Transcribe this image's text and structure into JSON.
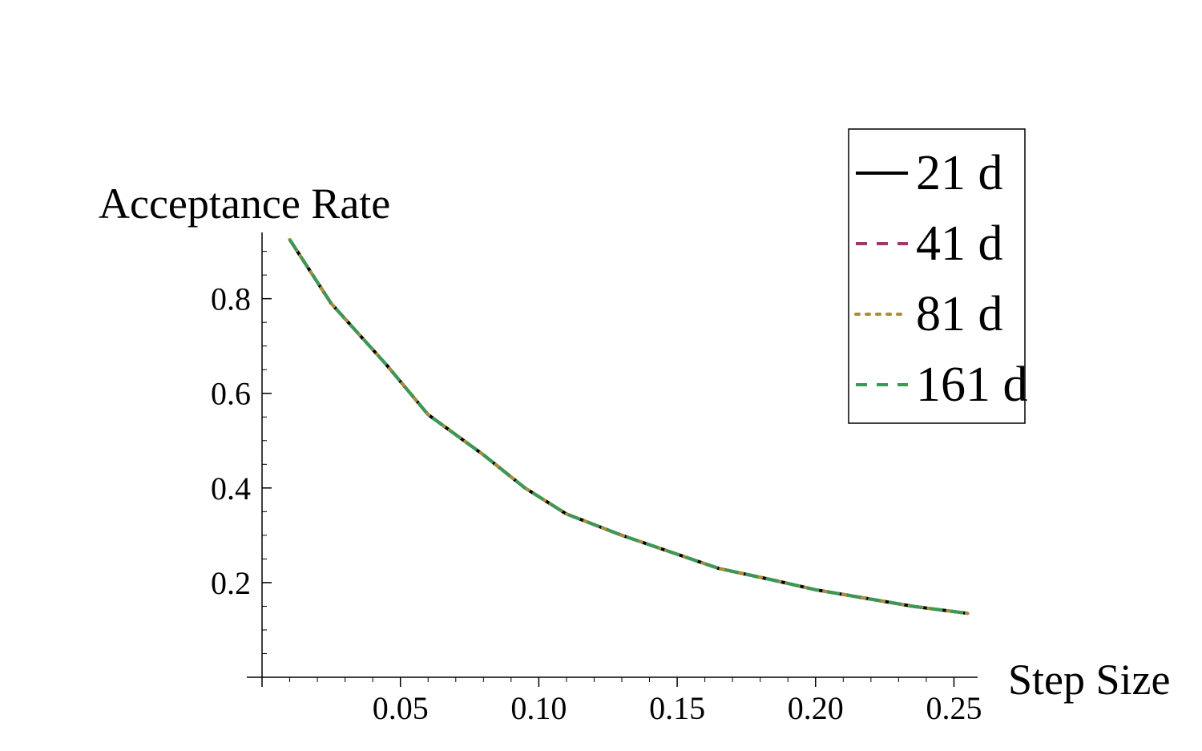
{
  "chart_data": {
    "type": "line",
    "xlabel": "Step Size",
    "ylabel": "Acceptance Rate",
    "xlim": [
      0.0,
      0.26
    ],
    "ylim": [
      0.0,
      0.94
    ],
    "xticks": [
      {
        "value": 0.05,
        "label": "0.05"
      },
      {
        "value": 0.1,
        "label": "0.10"
      },
      {
        "value": 0.15,
        "label": "0.15"
      },
      {
        "value": 0.2,
        "label": "0.20"
      },
      {
        "value": 0.25,
        "label": "0.25"
      }
    ],
    "yticks": [
      {
        "value": 0.2,
        "label": "0.2"
      },
      {
        "value": 0.4,
        "label": "0.4"
      },
      {
        "value": 0.6,
        "label": "0.6"
      },
      {
        "value": 0.8,
        "label": "0.8"
      }
    ],
    "legend_position": "top-right",
    "series": [
      {
        "name": "21 d",
        "color": "#000000",
        "dash": "solid",
        "x": [
          0.01,
          0.025,
          0.045,
          0.06,
          0.08,
          0.095,
          0.11,
          0.13,
          0.15,
          0.165,
          0.185,
          0.2,
          0.215,
          0.235,
          0.255
        ],
        "y": [
          0.925,
          0.79,
          0.66,
          0.555,
          0.47,
          0.4,
          0.345,
          0.3,
          0.26,
          0.23,
          0.205,
          0.185,
          0.17,
          0.15,
          0.135
        ]
      },
      {
        "name": "41 d",
        "color": "#9e3a6b",
        "dash": "dashed",
        "x": [
          0.01,
          0.025,
          0.045,
          0.06,
          0.08,
          0.095,
          0.11,
          0.13,
          0.15,
          0.165,
          0.185,
          0.2,
          0.215,
          0.235,
          0.255
        ],
        "y": [
          0.925,
          0.79,
          0.66,
          0.555,
          0.47,
          0.4,
          0.345,
          0.3,
          0.26,
          0.23,
          0.205,
          0.185,
          0.17,
          0.15,
          0.135
        ]
      },
      {
        "name": "81 d",
        "color": "#a5903a",
        "dash": "dotted",
        "x": [
          0.01,
          0.025,
          0.045,
          0.06,
          0.08,
          0.095,
          0.11,
          0.13,
          0.15,
          0.165,
          0.185,
          0.2,
          0.215,
          0.235,
          0.255
        ],
        "y": [
          0.925,
          0.79,
          0.66,
          0.555,
          0.47,
          0.4,
          0.345,
          0.3,
          0.26,
          0.23,
          0.205,
          0.185,
          0.17,
          0.15,
          0.135
        ]
      },
      {
        "name": "161 d",
        "color": "#3a9a55",
        "dash": "dashed",
        "x": [
          0.01,
          0.025,
          0.045,
          0.06,
          0.08,
          0.095,
          0.11,
          0.13,
          0.15,
          0.165,
          0.185,
          0.2,
          0.215,
          0.235,
          0.255
        ],
        "y": [
          0.925,
          0.79,
          0.66,
          0.555,
          0.47,
          0.4,
          0.345,
          0.3,
          0.26,
          0.23,
          0.205,
          0.185,
          0.17,
          0.15,
          0.135
        ]
      }
    ]
  }
}
